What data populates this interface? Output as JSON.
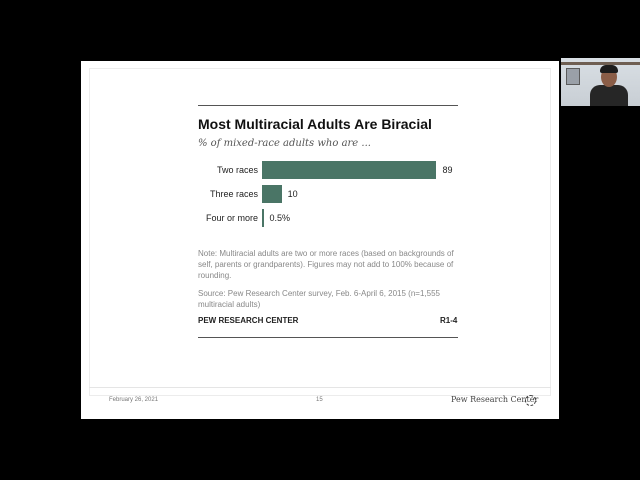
{
  "slide": {
    "title": "Most Multiracial Adults Are Biracial",
    "subtitle": "% of mixed-race adults who are ...",
    "note": "Note: Multiracial adults are two or more races (based on backgrounds of self, parents or grandparents). Figures may not add to 100%  because of rounding.",
    "source": "Source: Pew Research Center survey, Feb. 6-April 6, 2015 (n=1,555 multiracial adults)",
    "brand": "PEW RESEARCH CENTER",
    "figure_ref": "R1-4",
    "footer": {
      "date": "February 26, 2021",
      "page": "15",
      "org": "Pew Research Center",
      "logo_icon": "pew-logo-icon"
    }
  },
  "chart_data": {
    "type": "bar",
    "orientation": "horizontal",
    "categories": [
      "Two races",
      "Three races",
      "Four or more"
    ],
    "values": [
      89,
      10,
      0.5
    ],
    "value_labels": [
      "89",
      "10",
      "0.5%"
    ],
    "title": "Most Multiracial Adults Are Biracial",
    "subtitle": "% of mixed-race adults who are ...",
    "xlim": [
      0,
      100
    ],
    "grid": false,
    "bar_color": "#4a7566"
  },
  "webcam": {
    "icon": "webcam-presenter-icon"
  }
}
